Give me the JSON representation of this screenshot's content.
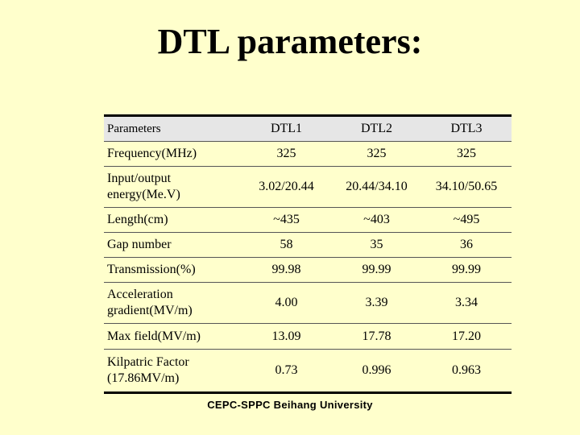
{
  "title": "DTL parameters:",
  "table": {
    "header": [
      "Parameters",
      "DTL1",
      "DTL2",
      "DTL3"
    ],
    "rows": [
      {
        "label": "Frequency(MHz)",
        "values": [
          "325",
          "325",
          "325"
        ]
      },
      {
        "label": "Input/output energy(Me.V)",
        "values": [
          "3.02/20.44",
          "20.44/34.10",
          "34.10/50.65"
        ]
      },
      {
        "label": "Length(cm)",
        "values": [
          "~435",
          "~403",
          "~495"
        ]
      },
      {
        "label": "Gap number",
        "values": [
          "58",
          "35",
          "36"
        ]
      },
      {
        "label": "Transmission(%)",
        "values": [
          "99.98",
          "99.99",
          "99.99"
        ]
      },
      {
        "label": "Acceleration gradient(MV/m)",
        "values": [
          "4.00",
          "3.39",
          "3.34"
        ]
      },
      {
        "label": "Max field(MV/m)",
        "values": [
          "13.09",
          "17.78",
          "17.20"
        ]
      },
      {
        "label": "Kilpatric  Factor (17.86MV/m)",
        "values": [
          "0.73",
          "0.996",
          "0.963"
        ]
      }
    ]
  },
  "footer": "CEPC-SPPC Beihang University"
}
